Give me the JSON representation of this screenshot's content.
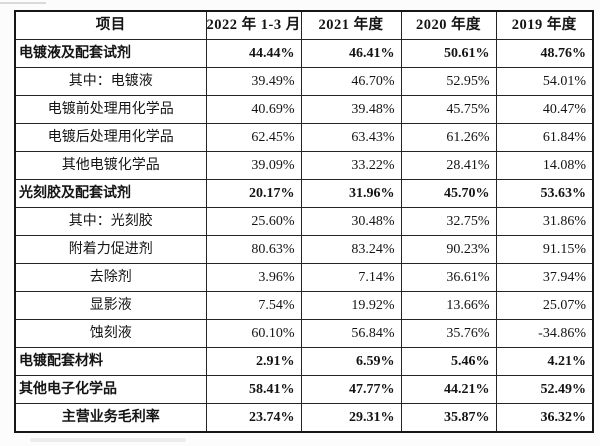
{
  "colors": {
    "page_bg": "#fcfcfc",
    "table_bg": "#ffffff",
    "border": "#161616",
    "text": "#141414"
  },
  "table": {
    "columns": [
      "项目",
      "2022 年 1-3 月",
      "2021 年度",
      "2020 年度",
      "2019 年度"
    ],
    "rows": [
      {
        "label": "电镀液及配套试剂",
        "values": [
          "44.44%",
          "46.41%",
          "50.61%",
          "48.76%"
        ],
        "bold": true,
        "align": "left"
      },
      {
        "label": "其中：电镀液",
        "values": [
          "39.49%",
          "46.70%",
          "52.95%",
          "54.01%"
        ],
        "bold": false,
        "align": "center"
      },
      {
        "label": "电镀前处理用化学品",
        "values": [
          "40.69%",
          "39.48%",
          "45.75%",
          "40.47%"
        ],
        "bold": false,
        "align": "center"
      },
      {
        "label": "电镀后处理用化学品",
        "values": [
          "62.45%",
          "63.43%",
          "61.26%",
          "61.84%"
        ],
        "bold": false,
        "align": "center"
      },
      {
        "label": "其他电镀化学品",
        "values": [
          "39.09%",
          "33.22%",
          "28.41%",
          "14.08%"
        ],
        "bold": false,
        "align": "center"
      },
      {
        "label": "光刻胶及配套试剂",
        "values": [
          "20.17%",
          "31.96%",
          "45.70%",
          "53.63%"
        ],
        "bold": true,
        "align": "left"
      },
      {
        "label": "其中：光刻胶",
        "values": [
          "25.60%",
          "30.48%",
          "32.75%",
          "31.86%"
        ],
        "bold": false,
        "align": "center"
      },
      {
        "label": "附着力促进剂",
        "values": [
          "80.63%",
          "83.24%",
          "90.23%",
          "91.15%"
        ],
        "bold": false,
        "align": "center"
      },
      {
        "label": "去除剂",
        "values": [
          "3.96%",
          "7.14%",
          "36.61%",
          "37.94%"
        ],
        "bold": false,
        "align": "center"
      },
      {
        "label": "显影液",
        "values": [
          "7.54%",
          "19.92%",
          "13.66%",
          "25.07%"
        ],
        "bold": false,
        "align": "center"
      },
      {
        "label": "蚀刻液",
        "values": [
          "60.10%",
          "56.84%",
          "35.76%",
          "-34.86%"
        ],
        "bold": false,
        "align": "center"
      },
      {
        "label": "电镀配套材料",
        "values": [
          "2.91%",
          "6.59%",
          "5.46%",
          "4.21%"
        ],
        "bold": true,
        "align": "left"
      },
      {
        "label": "其他电子化学品",
        "values": [
          "58.41%",
          "47.77%",
          "44.21%",
          "52.49%"
        ],
        "bold": true,
        "align": "left"
      },
      {
        "label": "主营业务毛利率",
        "values": [
          "23.74%",
          "29.31%",
          "35.87%",
          "36.32%"
        ],
        "bold": true,
        "align": "center"
      }
    ]
  }
}
